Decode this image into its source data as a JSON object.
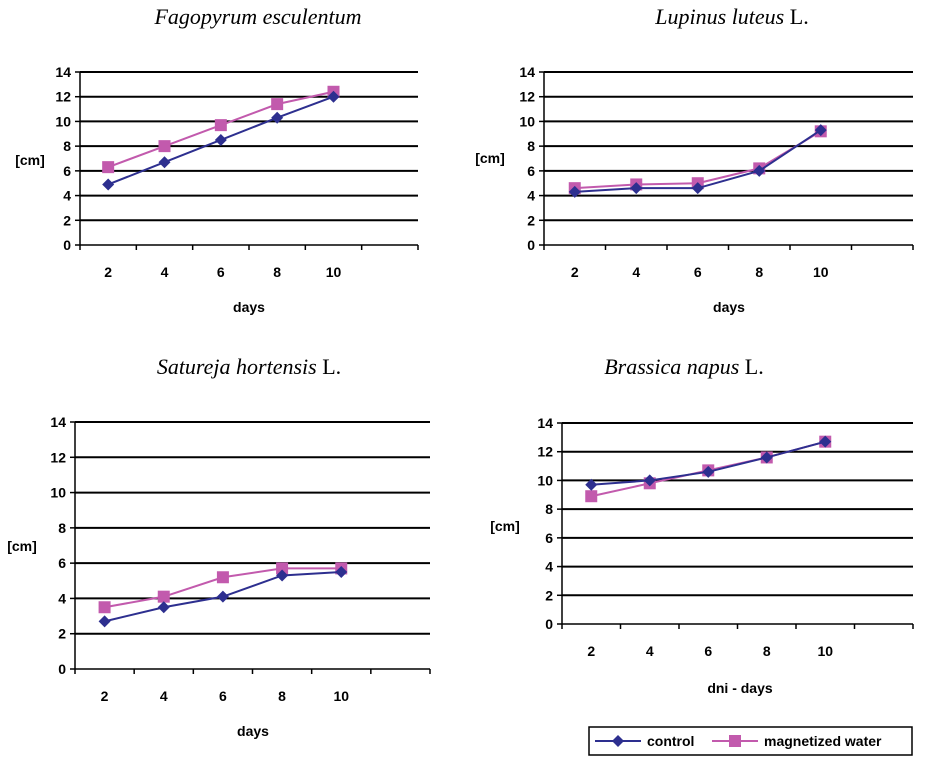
{
  "series_colors": {
    "control": "#2d2f8f",
    "magnetized_water": "#c25aad"
  },
  "legend": {
    "items": [
      {
        "name": "control",
        "color": "#2d2f8f",
        "marker": "diamond"
      },
      {
        "name": "magnetized water",
        "color": "#c25aad",
        "marker": "square"
      }
    ]
  },
  "chart_data": [
    {
      "type": "line",
      "title": {
        "italic": "Fagopyrum esculentum",
        "plain": ""
      },
      "xlabel": "days",
      "ylabel": "[cm]",
      "ylim": [
        0,
        14
      ],
      "yticks": [
        0,
        2,
        4,
        6,
        8,
        10,
        12,
        14
      ],
      "categories": [
        "2",
        "4",
        "6",
        "8",
        "10"
      ],
      "grid": true,
      "series": [
        {
          "name": "control",
          "values": [
            4.9,
            6.7,
            8.5,
            10.3,
            12.0
          ]
        },
        {
          "name": "magnetized water",
          "values": [
            6.3,
            8.0,
            9.7,
            11.4,
            12.4
          ]
        }
      ]
    },
    {
      "type": "line",
      "title": {
        "italic": "Lupinus luteus",
        "plain": " L."
      },
      "xlabel": "days",
      "ylabel": "[cm]",
      "ylim": [
        0,
        14
      ],
      "yticks": [
        0,
        2,
        4,
        6,
        8,
        10,
        12,
        14
      ],
      "categories": [
        "2",
        "4",
        "6",
        "8",
        "10"
      ],
      "grid": true,
      "series": [
        {
          "name": "control",
          "values": [
            4.3,
            4.6,
            4.6,
            6.0,
            9.3
          ]
        },
        {
          "name": "magnetized water",
          "values": [
            4.6,
            4.9,
            5.0,
            6.2,
            9.2
          ]
        }
      ]
    },
    {
      "type": "line",
      "title": {
        "italic": "Satureja hortensis",
        "plain": " L."
      },
      "xlabel": "days",
      "ylabel": "[cm]",
      "ylim": [
        0,
        14
      ],
      "yticks": [
        0,
        2,
        4,
        6,
        8,
        10,
        12,
        14
      ],
      "categories": [
        "2",
        "4",
        "6",
        "8",
        "10"
      ],
      "grid": true,
      "series": [
        {
          "name": "control",
          "values": [
            2.7,
            3.5,
            4.1,
            5.3,
            5.5
          ]
        },
        {
          "name": "magnetized water",
          "values": [
            3.5,
            4.1,
            5.2,
            5.7,
            5.7
          ]
        }
      ]
    },
    {
      "type": "line",
      "title": {
        "italic": "Brassica napus",
        "plain": " L."
      },
      "xlabel": "dni - days",
      "ylabel": "[cm]",
      "ylim": [
        0,
        14
      ],
      "yticks": [
        0,
        2,
        4,
        6,
        8,
        10,
        12,
        14
      ],
      "categories": [
        "2",
        "4",
        "6",
        "8",
        "10"
      ],
      "grid": true,
      "series": [
        {
          "name": "control",
          "values": [
            9.7,
            10.0,
            10.6,
            11.6,
            12.7
          ]
        },
        {
          "name": "magnetized water",
          "values": [
            8.9,
            9.8,
            10.7,
            11.6,
            12.7
          ]
        }
      ]
    }
  ]
}
